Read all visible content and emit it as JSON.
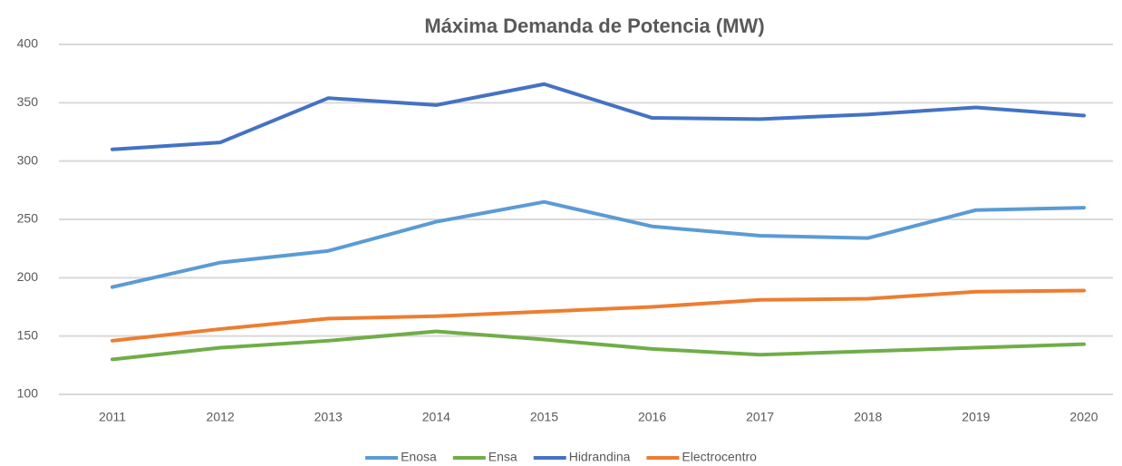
{
  "chart_data": {
    "type": "line",
    "title": "Máxima Demanda de Potencia (MW)",
    "categories": [
      "2011",
      "2012",
      "2013",
      "2014",
      "2015",
      "2016",
      "2017",
      "2018",
      "2019",
      "2020"
    ],
    "series": [
      {
        "name": "Enosa",
        "color": "#5b9bd5",
        "values": [
          192,
          213,
          223,
          248,
          265,
          244,
          236,
          234,
          258,
          260
        ]
      },
      {
        "name": "Ensa",
        "color": "#70ad47",
        "values": [
          130,
          140,
          146,
          154,
          147,
          139,
          134,
          137,
          140,
          143
        ]
      },
      {
        "name": "Hidrandina",
        "color": "#4472c4",
        "values": [
          310,
          316,
          354,
          348,
          366,
          337,
          336,
          340,
          346,
          339
        ]
      },
      {
        "name": "Electrocentro",
        "color": "#ed7d31",
        "values": [
          146,
          156,
          165,
          167,
          171,
          175,
          181,
          182,
          188,
          189
        ]
      }
    ],
    "ylim": [
      100,
      400
    ],
    "yticks": [
      100,
      150,
      200,
      250,
      300,
      350,
      400
    ],
    "grid": true,
    "legend": "bottom"
  }
}
